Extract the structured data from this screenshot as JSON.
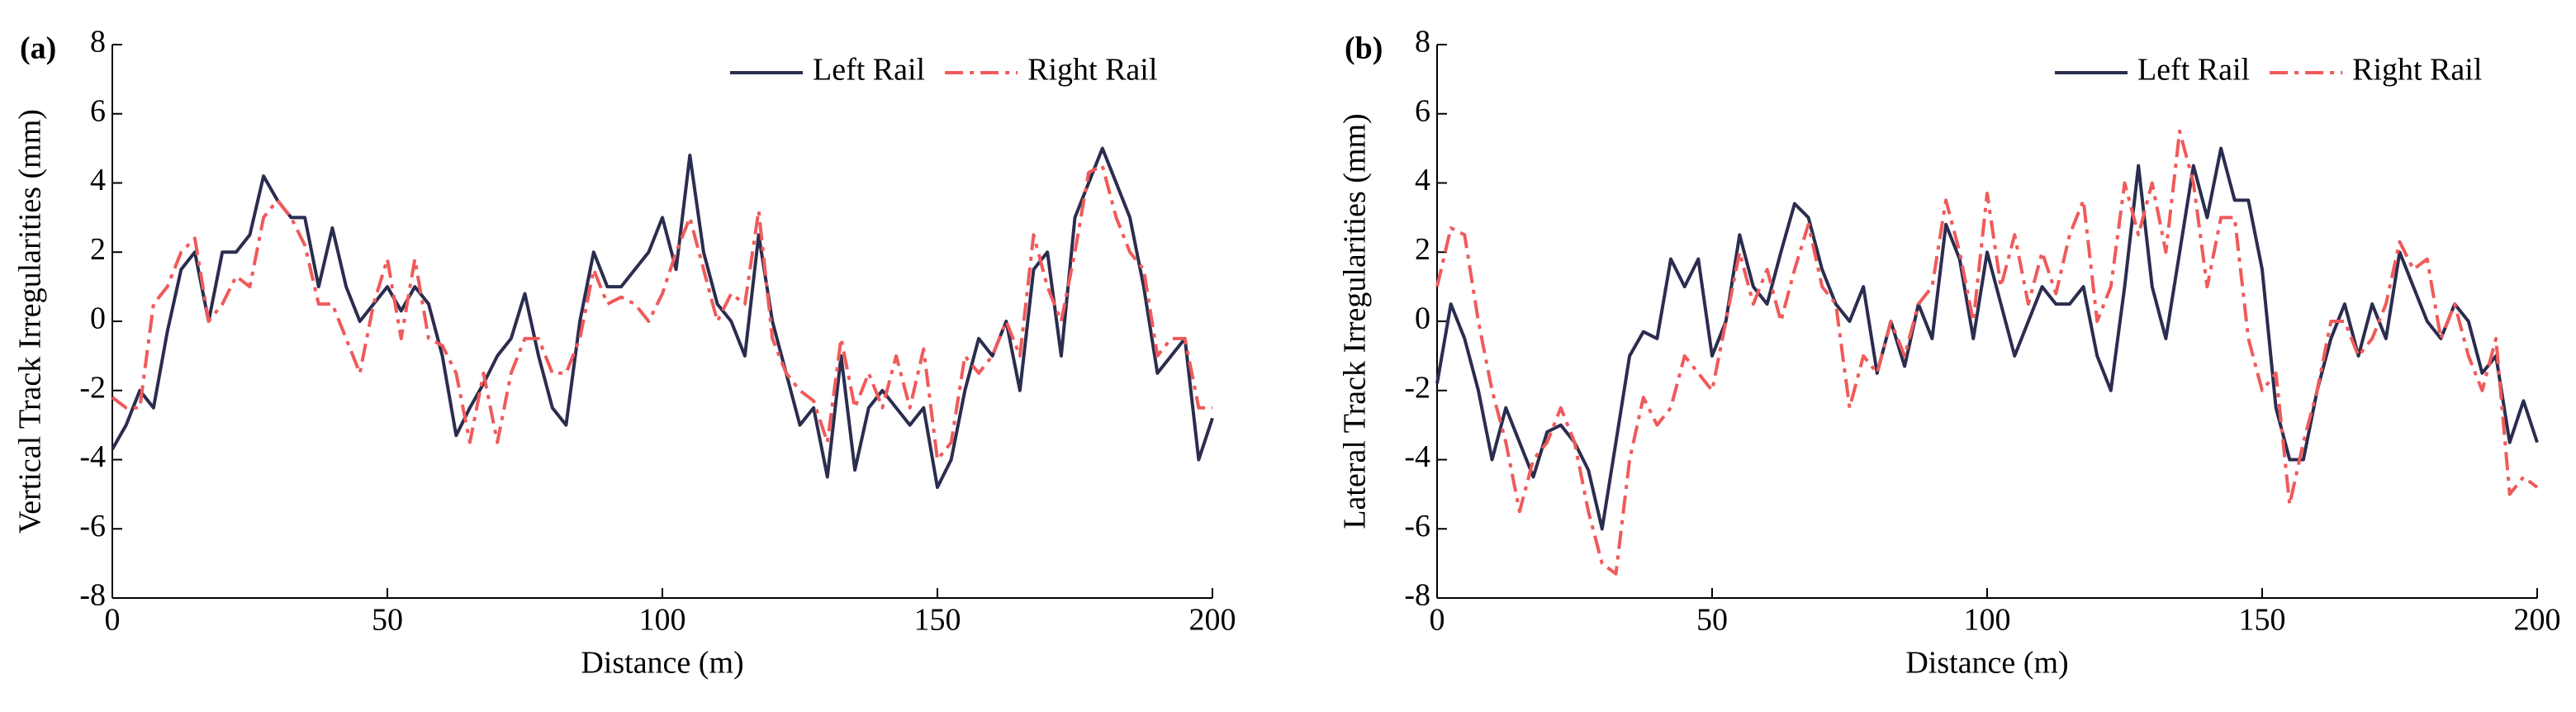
{
  "chart_data": [
    {
      "type": "line",
      "panel_label": "(a)",
      "x_label": "Distance (m)",
      "y_label": "Vertical Track Irregularities (mm)",
      "legend": "upper right",
      "x": [
        0,
        2.5,
        5,
        7.5,
        10,
        12.5,
        15,
        17.5,
        20,
        22.5,
        25,
        27.5,
        30,
        32.5,
        35,
        37.5,
        40,
        42.5,
        45,
        47.5,
        50,
        52.5,
        55,
        57.5,
        60,
        62.5,
        65,
        67.5,
        70,
        72.5,
        75,
        77.5,
        80,
        82.5,
        85,
        87.5,
        90,
        92.5,
        95,
        97.5,
        100,
        102.5,
        105,
        107.5,
        110,
        112.5,
        115,
        117.5,
        120,
        122.5,
        125,
        127.5,
        130,
        132.5,
        135,
        137.5,
        140,
        142.5,
        145,
        147.5,
        150,
        152.5,
        155,
        157.5,
        160,
        162.5,
        165,
        167.5,
        170,
        172.5,
        175,
        177.5,
        180,
        182.5,
        185,
        187.5,
        190,
        192.5,
        195,
        197.5,
        200
      ],
      "series": [
        {
          "name": "Left Rail",
          "color": "#2b2d4f",
          "dash": "solid",
          "values": [
            -3.7,
            -3,
            -2,
            -2.5,
            -0.3,
            1.5,
            2,
            0,
            2,
            2,
            2.5,
            4.2,
            3.5,
            3,
            3,
            1,
            2.7,
            1,
            0,
            0.5,
            1,
            0.3,
            1,
            0.5,
            -1,
            -3.3,
            -2.5,
            -1.8,
            -1,
            -0.5,
            0.8,
            -1,
            -2.5,
            -3,
            0,
            2,
            1,
            1,
            1.5,
            2,
            3,
            1.5,
            4.8,
            2,
            0.5,
            0,
            -1,
            2.5,
            0,
            -1.5,
            -3,
            -2.5,
            -4.5,
            -1,
            -4.3,
            -2.5,
            -2,
            -2.5,
            -3,
            -2.5,
            -4.8,
            -4,
            -2,
            -0.5,
            -1,
            0,
            -2,
            1.5,
            2,
            -1,
            3,
            4,
            5,
            4,
            3,
            1,
            -1.5,
            -1,
            -0.5,
            -4,
            -2.8
          ]
        },
        {
          "name": "Right Rail",
          "color": "#f05a5a",
          "dash": "dashdot",
          "values": [
            -2.2,
            -2.5,
            -2.5,
            0.5,
            1,
            2,
            2.4,
            0,
            0.5,
            1.3,
            1,
            3,
            3.5,
            3,
            2.2,
            0.5,
            0.5,
            -0.5,
            -1.5,
            0.5,
            1.8,
            -0.5,
            1.8,
            -0.5,
            -0.7,
            -1.5,
            -3.5,
            -1.5,
            -3.5,
            -1.5,
            -0.5,
            -0.5,
            -1.5,
            -1.5,
            -0.5,
            1.5,
            0.5,
            0.7,
            0.5,
            0,
            0.8,
            2,
            3,
            1.5,
            0,
            0.8,
            0.5,
            3.2,
            -0.5,
            -1.5,
            -2,
            -2.3,
            -3.5,
            -0.5,
            -2.5,
            -1.5,
            -2.5,
            -1,
            -2.5,
            -0.8,
            -4,
            -3.5,
            -1,
            -1.5,
            -1,
            0,
            -1,
            2.5,
            1,
            0,
            2,
            4.3,
            4.5,
            3,
            2,
            1.5,
            -1,
            -0.5,
            -0.5,
            -2.5,
            -2.5
          ]
        }
      ],
      "xlim": [
        0,
        200
      ],
      "xticks": [
        0,
        50,
        100,
        150,
        200
      ],
      "ylim": [
        -8,
        8
      ],
      "yticks": [
        -8,
        -6,
        -4,
        -2,
        0,
        2,
        4,
        6,
        8
      ]
    },
    {
      "type": "line",
      "panel_label": "(b)",
      "x_label": "Distance (m)",
      "y_label": "Lateral Track Irregularities (mm)",
      "legend": "upper right",
      "x": [
        0,
        2.5,
        5,
        7.5,
        10,
        12.5,
        15,
        17.5,
        20,
        22.5,
        25,
        27.5,
        30,
        32.5,
        35,
        37.5,
        40,
        42.5,
        45,
        47.5,
        50,
        52.5,
        55,
        57.5,
        60,
        62.5,
        65,
        67.5,
        70,
        72.5,
        75,
        77.5,
        80,
        82.5,
        85,
        87.5,
        90,
        92.5,
        95,
        97.5,
        100,
        102.5,
        105,
        107.5,
        110,
        112.5,
        115,
        117.5,
        120,
        122.5,
        125,
        127.5,
        130,
        132.5,
        135,
        137.5,
        140,
        142.5,
        145,
        147.5,
        150,
        152.5,
        155,
        157.5,
        160,
        162.5,
        165,
        167.5,
        170,
        172.5,
        175,
        177.5,
        180,
        182.5,
        185,
        187.5,
        190,
        192.5,
        195,
        197.5,
        200
      ],
      "series": [
        {
          "name": "Left Rail",
          "color": "#2b2d4f",
          "dash": "solid",
          "values": [
            -1.8,
            0.5,
            -0.5,
            -2,
            -4,
            -2.5,
            -3.5,
            -4.5,
            -3.2,
            -3,
            -3.5,
            -4.3,
            -6,
            -3.5,
            -1,
            -0.3,
            -0.5,
            1.8,
            1,
            1.8,
            -1,
            0,
            2.5,
            1,
            0.5,
            2,
            3.4,
            3,
            1.5,
            0.5,
            0,
            1,
            -1.5,
            0,
            -1.3,
            0.5,
            -0.5,
            2.8,
            1.8,
            -0.5,
            2,
            0.5,
            -1,
            0,
            1,
            0.5,
            0.5,
            1,
            -1,
            -2,
            1,
            4.5,
            1,
            -0.5,
            2,
            4.5,
            3,
            5,
            3.5,
            3.5,
            1.5,
            -2.5,
            -4,
            -4,
            -2,
            -0.5,
            0.5,
            -1,
            0.5,
            -0.5,
            2,
            1,
            0,
            -0.5,
            0.5,
            0,
            -1.5,
            -1,
            -3.5,
            -2.3,
            -3.5
          ]
        },
        {
          "name": "Right Rail",
          "color": "#f05a5a",
          "dash": "dashdot",
          "values": [
            1,
            2.7,
            2.5,
            0,
            -2,
            -3.5,
            -5.5,
            -4,
            -3.5,
            -2.5,
            -3.5,
            -5.5,
            -7,
            -7.3,
            -4,
            -2.2,
            -3,
            -2.5,
            -1,
            -1.5,
            -2,
            0,
            2,
            0.5,
            1.5,
            0,
            1.5,
            2.8,
            1,
            0.5,
            -2.5,
            -1,
            -1.5,
            0,
            -1,
            0.5,
            1,
            3.5,
            2,
            0,
            3.7,
            1,
            2.5,
            0.5,
            2,
            0.8,
            2.5,
            3.5,
            0,
            1,
            4,
            2.5,
            4,
            2,
            5.5,
            4,
            1,
            3,
            3,
            -0.5,
            -2,
            -1.5,
            -5.3,
            -3.5,
            -2,
            0,
            0,
            -1,
            -0.5,
            0.5,
            2.3,
            1.5,
            1.8,
            -0.5,
            0.5,
            -1,
            -2,
            -0.5,
            -5,
            -4.5,
            -4.8
          ]
        }
      ],
      "xlim": [
        0,
        200
      ],
      "xticks": [
        0,
        50,
        100,
        150,
        200
      ],
      "ylim": [
        -8,
        8
      ],
      "yticks": [
        -8,
        -6,
        -4,
        -2,
        0,
        2,
        4,
        6,
        8
      ]
    }
  ]
}
